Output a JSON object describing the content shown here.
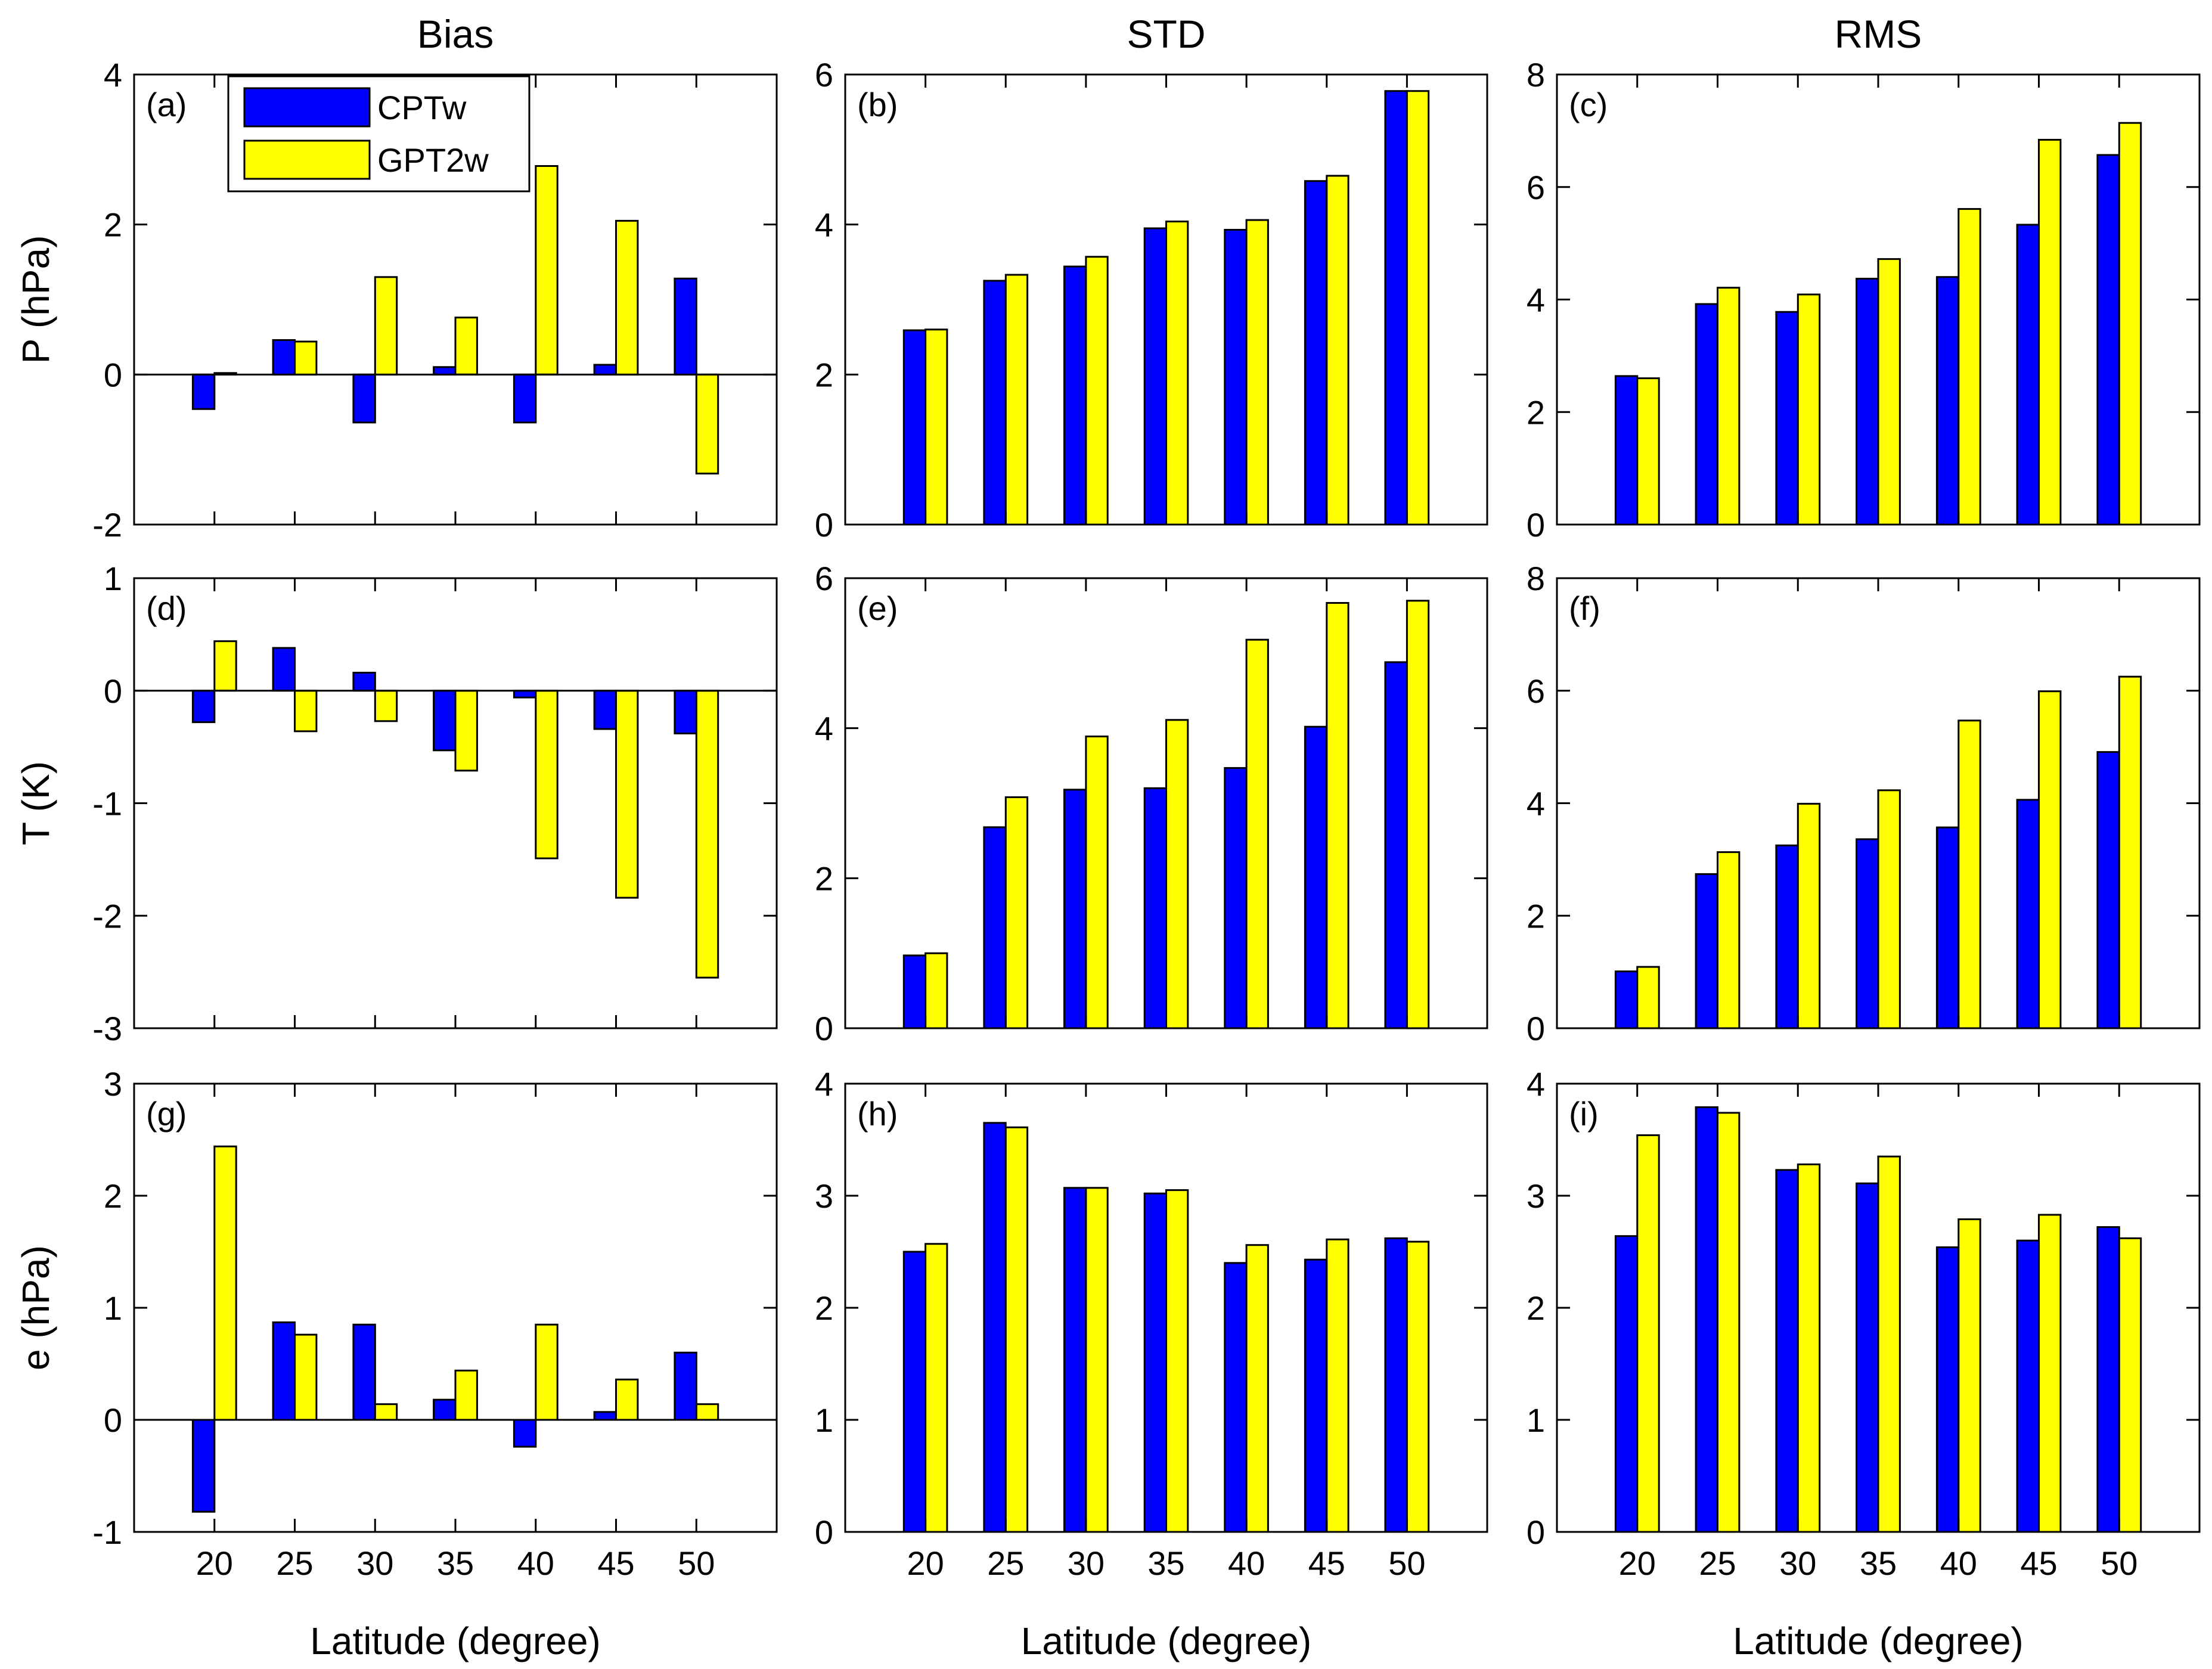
{
  "colors": {
    "cptw": "#0000FF",
    "gpt2w": "#FFFF00",
    "outline": "#000000",
    "background": "#FFFFFF"
  },
  "legend": {
    "location": "top-left of panel (a)",
    "entries": [
      "CPTw",
      "GPT2w"
    ]
  },
  "column_titles": [
    "Bias",
    "STD",
    "RMS"
  ],
  "row_ylabels": [
    "P (hPa)",
    "T (K)",
    "e (hPa)"
  ],
  "xlabel": "Latitude (degree)",
  "chart_data": [
    {
      "type": "bar",
      "panel": "(a)",
      "title": "Bias",
      "ylabel": "P (hPa)",
      "xlabel": "",
      "categories": [
        "20",
        "25",
        "30",
        "35",
        "40",
        "45",
        "50"
      ],
      "ylim": [
        -2,
        4
      ],
      "yticks": [
        "-2",
        "0",
        "2",
        "4"
      ],
      "series": [
        {
          "name": "CPTw",
          "values": [
            -0.46,
            0.46,
            -0.64,
            0.1,
            -0.64,
            0.13,
            1.28
          ]
        },
        {
          "name": "GPT2w",
          "values": [
            0.02,
            0.44,
            1.3,
            0.76,
            2.78,
            2.05,
            -1.32
          ]
        }
      ]
    },
    {
      "type": "bar",
      "panel": "(b)",
      "title": "STD",
      "ylabel": "",
      "xlabel": "",
      "categories": [
        "20",
        "25",
        "30",
        "35",
        "40",
        "45",
        "50"
      ],
      "ylim": [
        0,
        6
      ],
      "yticks": [
        "0",
        "2",
        "4",
        "6"
      ],
      "series": [
        {
          "name": "CPTw",
          "values": [
            2.59,
            3.25,
            3.44,
            3.95,
            3.93,
            4.58,
            5.78
          ]
        },
        {
          "name": "GPT2w",
          "values": [
            2.6,
            3.33,
            3.57,
            4.04,
            4.06,
            4.65,
            5.78
          ]
        }
      ]
    },
    {
      "type": "bar",
      "panel": "(c)",
      "title": "RMS",
      "ylabel": "",
      "xlabel": "",
      "categories": [
        "20",
        "25",
        "30",
        "35",
        "40",
        "45",
        "50"
      ],
      "ylim": [
        0,
        8
      ],
      "yticks": [
        "0",
        "2",
        "4",
        "6",
        "8"
      ],
      "series": [
        {
          "name": "CPTw",
          "values": [
            2.64,
            3.92,
            3.78,
            4.37,
            4.4,
            5.33,
            6.57
          ]
        },
        {
          "name": "GPT2w",
          "values": [
            2.6,
            4.21,
            4.09,
            4.72,
            5.61,
            6.84,
            7.14
          ]
        }
      ]
    },
    {
      "type": "bar",
      "panel": "(d)",
      "title": "",
      "ylabel": "T (K)",
      "xlabel": "",
      "categories": [
        "20",
        "25",
        "30",
        "35",
        "40",
        "45",
        "50"
      ],
      "ylim": [
        -3,
        1
      ],
      "yticks": [
        "-3",
        "-2",
        "-1",
        "0",
        "1"
      ],
      "series": [
        {
          "name": "CPTw",
          "values": [
            -0.28,
            0.38,
            0.16,
            -0.53,
            -0.06,
            -0.34,
            -0.38
          ]
        },
        {
          "name": "GPT2w",
          "values": [
            0.44,
            -0.36,
            -0.27,
            -0.71,
            -1.49,
            -1.84,
            -2.55
          ]
        }
      ]
    },
    {
      "type": "bar",
      "panel": "(e)",
      "title": "",
      "ylabel": "",
      "xlabel": "",
      "categories": [
        "20",
        "25",
        "30",
        "35",
        "40",
        "45",
        "50"
      ],
      "ylim": [
        0,
        6
      ],
      "yticks": [
        "0",
        "2",
        "4",
        "6"
      ],
      "series": [
        {
          "name": "CPTw",
          "values": [
            0.97,
            2.68,
            3.18,
            3.2,
            3.47,
            4.02,
            4.88
          ]
        },
        {
          "name": "GPT2w",
          "values": [
            1.0,
            3.08,
            3.89,
            4.11,
            5.18,
            5.67,
            5.7
          ]
        }
      ]
    },
    {
      "type": "bar",
      "panel": "(f)",
      "title": "",
      "ylabel": "",
      "xlabel": "",
      "categories": [
        "20",
        "25",
        "30",
        "35",
        "40",
        "45",
        "50"
      ],
      "ylim": [
        0,
        8
      ],
      "yticks": [
        "0",
        "2",
        "4",
        "6",
        "8"
      ],
      "series": [
        {
          "name": "CPTw",
          "values": [
            1.01,
            2.74,
            3.25,
            3.36,
            3.57,
            4.06,
            4.91
          ]
        },
        {
          "name": "GPT2w",
          "values": [
            1.09,
            3.13,
            3.99,
            4.23,
            5.47,
            5.99,
            6.25
          ]
        }
      ]
    },
    {
      "type": "bar",
      "panel": "(g)",
      "title": "",
      "ylabel": "e (hPa)",
      "xlabel": "Latitude (degree)",
      "categories": [
        "20",
        "25",
        "30",
        "35",
        "40",
        "45",
        "50"
      ],
      "ylim": [
        -1,
        3
      ],
      "yticks": [
        "-1",
        "0",
        "1",
        "2",
        "3"
      ],
      "series": [
        {
          "name": "CPTw",
          "values": [
            -0.82,
            0.87,
            0.85,
            0.18,
            -0.24,
            0.07,
            0.6
          ]
        },
        {
          "name": "GPT2w",
          "values": [
            2.44,
            0.76,
            0.14,
            0.44,
            0.85,
            0.36,
            0.14
          ]
        }
      ]
    },
    {
      "type": "bar",
      "panel": "(h)",
      "title": "",
      "ylabel": "",
      "xlabel": "Latitude (degree)",
      "categories": [
        "20",
        "25",
        "30",
        "35",
        "40",
        "45",
        "50"
      ],
      "ylim": [
        0,
        4
      ],
      "yticks": [
        "0",
        "1",
        "2",
        "3",
        "4"
      ],
      "series": [
        {
          "name": "CPTw",
          "values": [
            2.5,
            3.65,
            3.07,
            3.02,
            2.4,
            2.43,
            2.62
          ]
        },
        {
          "name": "GPT2w",
          "values": [
            2.57,
            3.61,
            3.07,
            3.05,
            2.56,
            2.61,
            2.59
          ]
        }
      ]
    },
    {
      "type": "bar",
      "panel": "(i)",
      "title": "",
      "ylabel": "",
      "xlabel": "Latitude (degree)",
      "categories": [
        "20",
        "25",
        "30",
        "35",
        "40",
        "45",
        "50"
      ],
      "ylim": [
        0,
        4
      ],
      "yticks": [
        "0",
        "1",
        "2",
        "3",
        "4"
      ],
      "series": [
        {
          "name": "CPTw",
          "values": [
            2.64,
            3.79,
            3.23,
            3.11,
            2.54,
            2.6,
            2.72
          ]
        },
        {
          "name": "GPT2w",
          "values": [
            3.54,
            3.74,
            3.28,
            3.35,
            2.79,
            2.83,
            2.62
          ]
        }
      ]
    }
  ]
}
